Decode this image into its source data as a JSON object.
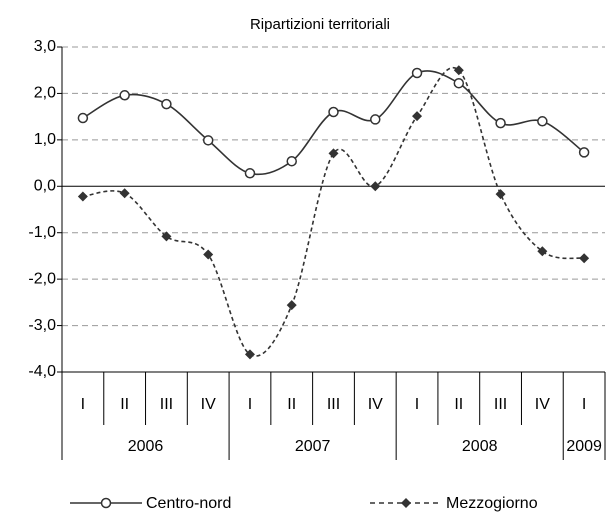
{
  "chart_data": {
    "type": "line",
    "title": "Ripartizioni territoriali",
    "categories": [
      "I",
      "II",
      "III",
      "IV",
      "I",
      "II",
      "III",
      "IV",
      "I",
      "II",
      "III",
      "IV",
      "I"
    ],
    "years": [
      "2006",
      null,
      null,
      null,
      "2007",
      null,
      null,
      null,
      "2008",
      null,
      null,
      null,
      "2009"
    ],
    "series": [
      {
        "name": "Centro-nord",
        "color": "#333333",
        "dash": false,
        "marker": "circle",
        "values": [
          1.47,
          1.96,
          1.77,
          0.99,
          0.28,
          0.54,
          1.6,
          1.44,
          2.44,
          2.22,
          1.36,
          1.4,
          0.73
        ]
      },
      {
        "name": "Mezzogiorno",
        "color": "#333333",
        "dash": true,
        "marker": "diamond",
        "values": [
          -0.22,
          -0.15,
          -1.08,
          -1.47,
          -3.62,
          -2.56,
          0.71,
          0,
          1.51,
          2.5,
          -0.17,
          -1.4,
          -1.55
        ]
      }
    ],
    "ylim": [
      -4,
      3
    ],
    "yticks": [
      {
        "value": -4,
        "label": "-4,0"
      },
      {
        "value": -3,
        "label": "-3,0"
      },
      {
        "value": -2,
        "label": "-2,0"
      },
      {
        "value": -1,
        "label": "-1,0"
      },
      {
        "value": 0,
        "label": "0,0"
      },
      {
        "value": 1,
        "label": "1,0"
      },
      {
        "value": 2,
        "label": "2,0"
      },
      {
        "value": 3,
        "label": "3,0"
      }
    ],
    "grid": true
  }
}
